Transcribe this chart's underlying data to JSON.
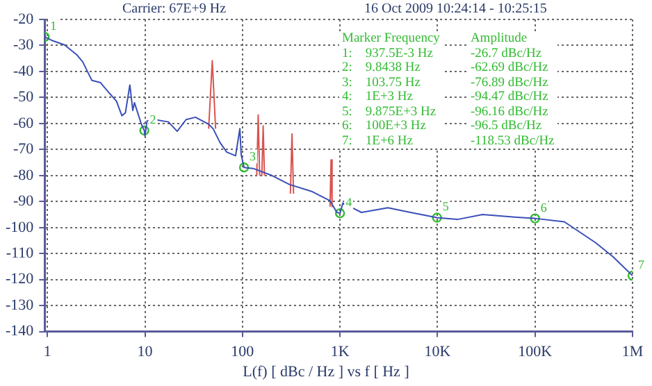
{
  "chart_data": {
    "type": "line",
    "title": "Carrier: 67E+9 Hz",
    "subtitle": "16 Oct 2009  10:24:14 - 10:25:15",
    "xlabel": "L(f)  [ dBc / Hz ]  vs  f  [ Hz ]",
    "log": "x",
    "grid": true,
    "legend": false,
    "xlim": [
      0.9375,
      1000000
    ],
    "xticks": [
      1,
      10,
      100,
      {
        "value": 1000,
        "label": "1K"
      },
      {
        "value": 10000,
        "label": "10K"
      },
      {
        "value": 100000,
        "label": "100K"
      },
      {
        "value": 1000000,
        "label": "1M"
      }
    ],
    "ylim": [
      -140,
      -20
    ],
    "yticks": [
      -140,
      -130,
      -120,
      -110,
      -100,
      -90,
      -80,
      -70,
      -60,
      -50,
      -40,
      -30,
      -20
    ],
    "series": [
      {
        "color": "#3a4fb8",
        "x": [
          0.9375,
          1.1,
          1.5,
          2,
          2.3,
          2.85,
          3.5,
          4.4,
          5.1,
          5.8,
          6.3,
          7,
          7.5,
          7.8,
          9.2,
          9.8438,
          10,
          10.5,
          12.6,
          17.4,
          21.4,
          26.4,
          32.9,
          45,
          50,
          59,
          69,
          85,
          94,
          97,
          103.75,
          129,
          200,
          305,
          520,
          790,
          930,
          1000,
          1070,
          1660,
          3100,
          5300,
          9875,
          16000,
          29000,
          62000,
          100000,
          200000,
          417000,
          630000,
          1000000
        ],
        "values": [
          -26.7,
          -28,
          -29.8,
          -33.6,
          -36.3,
          -43.4,
          -44.3,
          -48.7,
          -51.4,
          -57,
          -55.9,
          -45.2,
          -55,
          -52,
          -60.3,
          -62.7,
          -64.8,
          -59,
          -58.5,
          -59.4,
          -63,
          -58.5,
          -57.6,
          -60.3,
          -62,
          -67.4,
          -71,
          -72.4,
          -62,
          -72,
          -76.9,
          -77.3,
          -80,
          -83.5,
          -86.2,
          -89.7,
          -94.2,
          -94.5,
          -90.6,
          -94.2,
          -92.4,
          -94.2,
          -96.2,
          -96.9,
          -95,
          -96,
          -96.5,
          -97.8,
          -105.8,
          -111.2,
          -118.5
        ]
      },
      {
        "color": "#d9534f",
        "x": [
          45,
          49,
          53
        ],
        "values": [
          -62,
          -35.9,
          -62
        ]
      },
      {
        "color": "#d9534f",
        "x": [
          140,
          145,
          150
        ],
        "values": [
          -80,
          -56.7,
          -80
        ]
      },
      {
        "color": "#d9534f",
        "x": [
          158,
          163,
          168
        ],
        "values": [
          -80,
          -60.9,
          -80
        ]
      },
      {
        "color": "#d9534f",
        "x": [
          310,
          322,
          334
        ],
        "values": [
          -87,
          -64,
          -87
        ]
      },
      {
        "color": "#d9534f",
        "x": [
          790,
          810,
          830
        ],
        "values": [
          -92,
          -74,
          -92
        ]
      },
      {
        "type": "scatter",
        "color": "#33bb33",
        "marker": "circle",
        "x": [
          0.9375,
          9.8438,
          103.75,
          1000,
          9875,
          100000,
          1000000
        ],
        "values": [
          -26.7,
          -62.7,
          -76.9,
          -94.5,
          -96.2,
          -96.5,
          -118.5
        ]
      }
    ],
    "annotations": [
      {
        "text": "1",
        "x": 0.9375,
        "y": -26.7
      },
      {
        "text": "2",
        "x": 9.8438,
        "y": -62.7
      },
      {
        "text": "3",
        "x": 103.75,
        "y": -76.9
      },
      {
        "text": "4",
        "x": 1000,
        "y": -94.5
      },
      {
        "text": "5",
        "x": 9875,
        "y": -96.2
      },
      {
        "text": "6",
        "x": 100000,
        "y": -96.5
      },
      {
        "text": "7",
        "x": 1000000,
        "y": -118.5
      },
      "Marker Frequency",
      "Amplitude",
      "1:    937.5E-3 Hz",
      "-26.7 dBc/Hz",
      "2:    9.8438 Hz",
      "-62.69 dBc/Hz",
      "3:    103.75 Hz",
      "-76.89 dBc/Hz",
      "4:    1E+3 Hz",
      "-94.47 dBc/Hz",
      "5:    9.875E+3 Hz",
      "-96.16 dBc/Hz",
      "6:    100E+3 Hz",
      "-96.5 dBc/Hz",
      "7:    1E+6 Hz",
      "-118.53 dBc/Hz"
    ]
  }
}
